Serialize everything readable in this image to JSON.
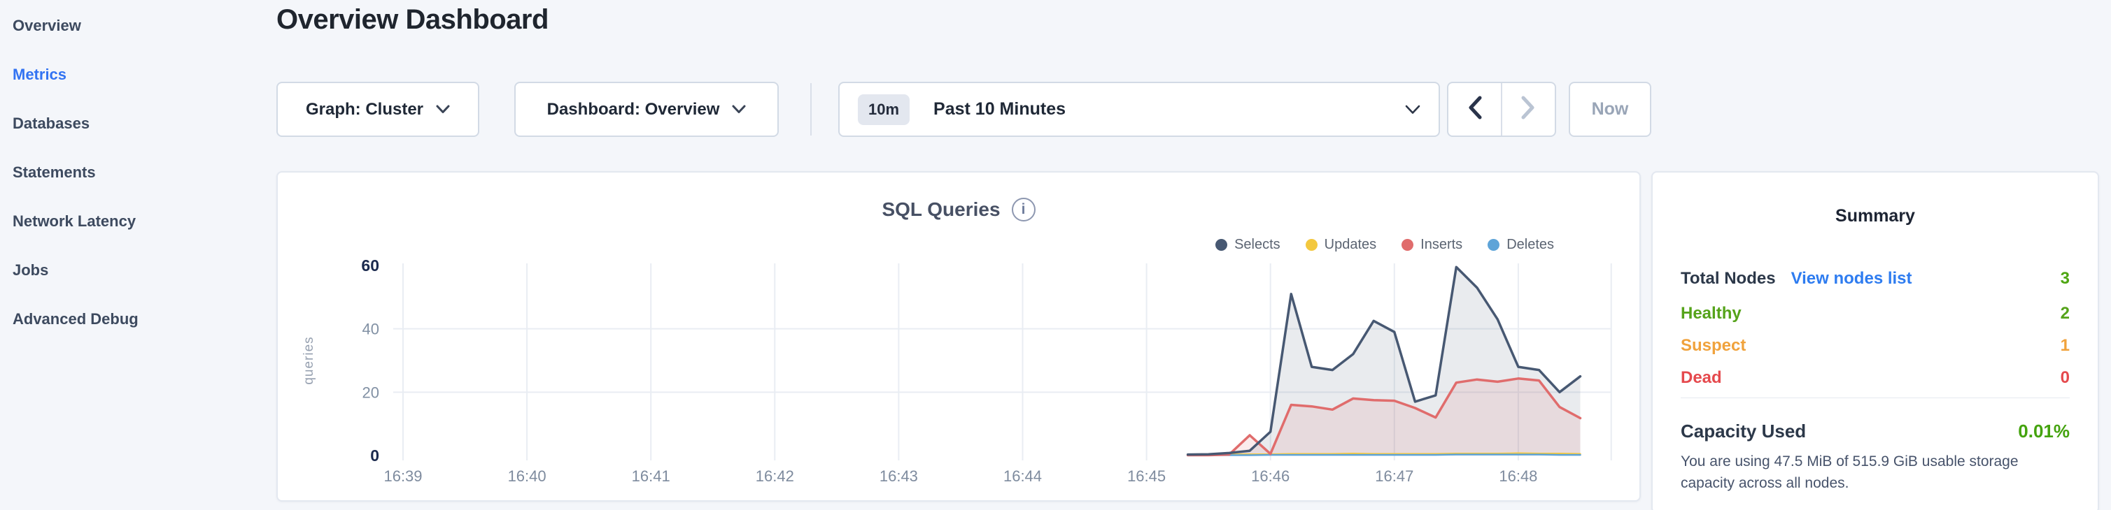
{
  "sidebar": {
    "active_color": "#3273f2",
    "items": [
      {
        "label": "Overview",
        "active": false
      },
      {
        "label": "Metrics",
        "active": true
      },
      {
        "label": "Databases",
        "active": false
      },
      {
        "label": "Statements",
        "active": false
      },
      {
        "label": "Network Latency",
        "active": false
      },
      {
        "label": "Jobs",
        "active": false
      },
      {
        "label": "Advanced Debug",
        "active": false
      }
    ]
  },
  "header": {
    "title": "Overview Dashboard"
  },
  "controls": {
    "graph_dropdown_label": "Graph: Cluster",
    "dashboard_dropdown_label": "Dashboard: Overview",
    "time_badge": "10m",
    "time_label": "Past 10 Minutes",
    "now_label": "Now"
  },
  "chart": {
    "title": "SQL Queries",
    "info_icon_glyph": "i"
  },
  "chart_data": {
    "type": "area",
    "title": "SQL Queries",
    "ylabel": "queries",
    "ylim": [
      0,
      60
    ],
    "yticks": [
      0,
      20,
      40,
      60
    ],
    "grid": {
      "horizontal_at": [
        20,
        40
      ],
      "vertical": "every minute"
    },
    "legend_position": "top-right",
    "x_tick_labels": [
      "16:39",
      "16:40",
      "16:41",
      "16:42",
      "16:43",
      "16:44",
      "16:45",
      "16:46",
      "16:47",
      "16:48"
    ],
    "x_tick_minutes": [
      0,
      1,
      2,
      3,
      4,
      5,
      6,
      7,
      8,
      9
    ],
    "x_domain_minutes": [
      -0.08,
      9.75
    ],
    "sample_minutes": [
      6.333,
      6.5,
      6.667,
      6.833,
      7.0,
      7.167,
      7.333,
      7.5,
      7.667,
      7.833,
      8.0,
      8.167,
      8.333,
      8.5,
      8.667,
      8.833,
      9.0,
      9.167,
      9.333,
      9.5
    ],
    "series": [
      {
        "name": "Selects",
        "color": "#475872",
        "fill": "rgba(71,88,114,0.12)",
        "values": [
          0.3,
          0.4,
          0.8,
          1.5,
          7.5,
          51,
          28,
          27,
          32,
          42.5,
          39,
          17,
          19,
          59.5,
          53,
          43,
          28,
          27,
          20,
          25
        ]
      },
      {
        "name": "Updates",
        "color": "#f3c83f",
        "fill": null,
        "values": [
          0.3,
          0.3,
          0.3,
          0.4,
          0.4,
          0.5,
          0.5,
          0.5,
          0.6,
          0.5,
          0.5,
          0.5,
          0.5,
          0.6,
          0.6,
          0.6,
          0.7,
          0.6,
          0.6,
          0.5
        ]
      },
      {
        "name": "Inserts",
        "color": "#e06c6c",
        "fill": "rgba(224,108,108,0.13)",
        "values": [
          0.1,
          0.1,
          0.3,
          6.4,
          0.5,
          16,
          15.5,
          14.5,
          18,
          17.5,
          17.3,
          15,
          12,
          23,
          24,
          23.3,
          24.3,
          23.7,
          15.3,
          11.8
        ]
      },
      {
        "name": "Deletes",
        "color": "#5ea4d8",
        "fill": null,
        "values": [
          0.1,
          0.1,
          0.1,
          0.1,
          0.2,
          0.2,
          0.2,
          0.2,
          0.2,
          0.2,
          0.2,
          0.2,
          0.2,
          0.3,
          0.3,
          0.3,
          0.3,
          0.3,
          0.2,
          0.2
        ]
      }
    ]
  },
  "summary": {
    "title": "Summary",
    "rows": [
      {
        "label": "Total Nodes",
        "link": "View nodes list",
        "value": "3",
        "label_color": "#2c3849",
        "value_color": "#4ea612"
      },
      {
        "label": "Healthy",
        "value": "2",
        "label_color": "#55a31a",
        "value_color": "#55a31a"
      },
      {
        "label": "Suspect",
        "value": "1",
        "label_color": "#f0a23c",
        "value_color": "#f0a23c"
      },
      {
        "label": "Dead",
        "value": "0",
        "label_color": "#e5494d",
        "value_color": "#e5494d"
      }
    ],
    "capacity": {
      "label": "Capacity Used",
      "value": "0.01%",
      "value_color": "#44a30e",
      "description": "You are using 47.5 MiB of 515.9 GiB usable storage capacity across all nodes."
    }
  }
}
